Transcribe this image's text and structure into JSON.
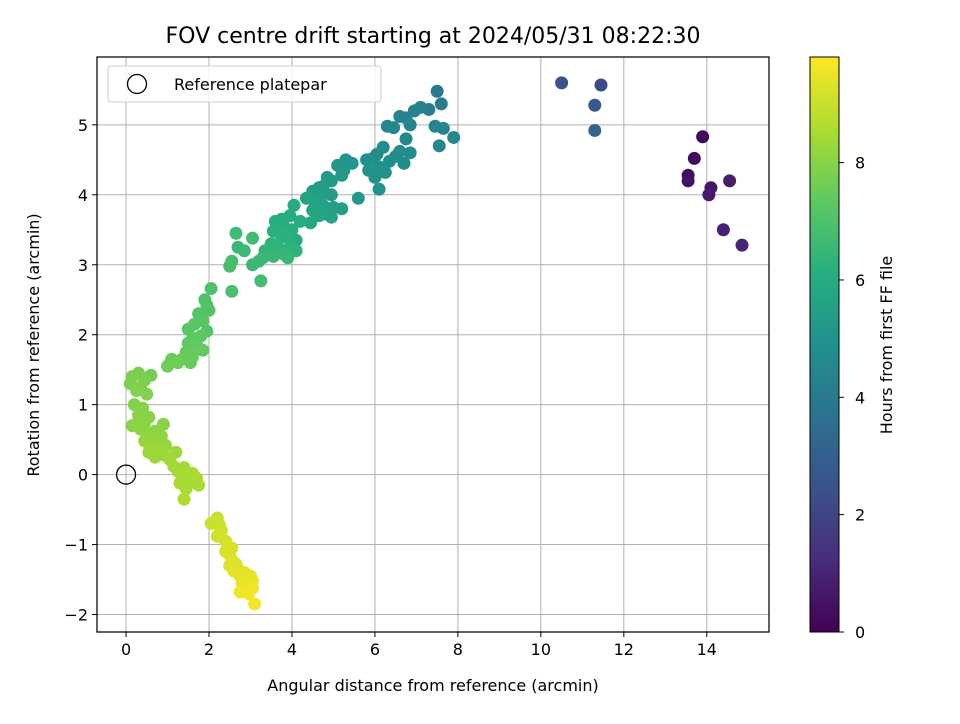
{
  "chart_data": {
    "type": "scatter",
    "title": "FOV centre drift starting at 2024/05/31 08:22:30",
    "xlabel": "Angular distance from reference (arcmin)",
    "ylabel": "Rotation from reference (arcmin)",
    "xlim": [
      -0.7,
      15.5
    ],
    "ylim": [
      -2.25,
      5.97
    ],
    "xticks": [
      0,
      2,
      4,
      6,
      8,
      10,
      12,
      14
    ],
    "yticks": [
      -2,
      -1,
      0,
      1,
      2,
      3,
      4,
      5
    ],
    "grid": true,
    "legend": {
      "position": "upper-left",
      "entries": [
        "Reference platepar"
      ]
    },
    "reference_point": {
      "x": 0,
      "y": 0,
      "label": "Reference platepar",
      "marker": "hollow-circle"
    },
    "colorbar": {
      "label": "Hours from first FF file",
      "colormap": "viridis",
      "range": [
        0,
        9.8
      ],
      "ticks": [
        0,
        2,
        4,
        6,
        8
      ]
    },
    "points": [
      {
        "x": 13.9,
        "y": 4.83,
        "c": 0.2
      },
      {
        "x": 13.7,
        "y": 4.52,
        "c": 0.3
      },
      {
        "x": 13.55,
        "y": 4.28,
        "c": 0.4
      },
      {
        "x": 13.55,
        "y": 4.2,
        "c": 0.5
      },
      {
        "x": 14.1,
        "y": 4.1,
        "c": 0.6
      },
      {
        "x": 14.05,
        "y": 4.0,
        "c": 0.7
      },
      {
        "x": 14.55,
        "y": 4.2,
        "c": 0.8
      },
      {
        "x": 14.4,
        "y": 3.5,
        "c": 0.9
      },
      {
        "x": 14.85,
        "y": 3.28,
        "c": 1.0
      },
      {
        "x": 10.5,
        "y": 5.6,
        "c": 2.5
      },
      {
        "x": 11.45,
        "y": 5.57,
        "c": 2.2
      },
      {
        "x": 11.3,
        "y": 5.28,
        "c": 2.7
      },
      {
        "x": 11.3,
        "y": 4.92,
        "c": 3.2
      },
      {
        "x": 7.5,
        "y": 5.48,
        "c": 4.0
      },
      {
        "x": 7.6,
        "y": 5.3,
        "c": 4.1
      },
      {
        "x": 7.3,
        "y": 5.22,
        "c": 4.2
      },
      {
        "x": 7.1,
        "y": 5.25,
        "c": 4.3
      },
      {
        "x": 6.95,
        "y": 5.2,
        "c": 4.3
      },
      {
        "x": 6.6,
        "y": 5.12,
        "c": 4.4
      },
      {
        "x": 6.75,
        "y": 5.1,
        "c": 4.4
      },
      {
        "x": 6.85,
        "y": 5.0,
        "c": 4.5
      },
      {
        "x": 6.3,
        "y": 4.98,
        "c": 4.5
      },
      {
        "x": 6.45,
        "y": 4.96,
        "c": 4.5
      },
      {
        "x": 7.45,
        "y": 4.98,
        "c": 4.4
      },
      {
        "x": 7.65,
        "y": 4.95,
        "c": 4.4
      },
      {
        "x": 7.9,
        "y": 4.82,
        "c": 4.5
      },
      {
        "x": 6.75,
        "y": 4.8,
        "c": 4.6
      },
      {
        "x": 7.55,
        "y": 4.7,
        "c": 4.5
      },
      {
        "x": 6.2,
        "y": 4.68,
        "c": 4.7
      },
      {
        "x": 6.6,
        "y": 4.62,
        "c": 4.7
      },
      {
        "x": 6.85,
        "y": 4.6,
        "c": 4.7
      },
      {
        "x": 6.05,
        "y": 4.58,
        "c": 4.8
      },
      {
        "x": 5.95,
        "y": 4.52,
        "c": 4.8
      },
      {
        "x": 5.8,
        "y": 4.5,
        "c": 4.9
      },
      {
        "x": 6.35,
        "y": 4.48,
        "c": 4.8
      },
      {
        "x": 6.5,
        "y": 4.55,
        "c": 4.8
      },
      {
        "x": 6.7,
        "y": 4.45,
        "c": 4.8
      },
      {
        "x": 6.1,
        "y": 4.4,
        "c": 4.9
      },
      {
        "x": 5.85,
        "y": 4.35,
        "c": 5.0
      },
      {
        "x": 6.25,
        "y": 4.32,
        "c": 5.0
      },
      {
        "x": 6.0,
        "y": 4.25,
        "c": 5.0
      },
      {
        "x": 5.3,
        "y": 4.5,
        "c": 5.1
      },
      {
        "x": 5.45,
        "y": 4.45,
        "c": 5.1
      },
      {
        "x": 5.1,
        "y": 4.42,
        "c": 5.2
      },
      {
        "x": 5.25,
        "y": 4.35,
        "c": 5.2
      },
      {
        "x": 4.85,
        "y": 4.25,
        "c": 5.3
      },
      {
        "x": 4.95,
        "y": 4.2,
        "c": 5.3
      },
      {
        "x": 5.2,
        "y": 4.28,
        "c": 5.2
      },
      {
        "x": 4.65,
        "y": 4.1,
        "c": 5.4
      },
      {
        "x": 4.75,
        "y": 4.12,
        "c": 5.4
      },
      {
        "x": 4.5,
        "y": 4.05,
        "c": 5.5
      },
      {
        "x": 4.7,
        "y": 3.98,
        "c": 5.5
      },
      {
        "x": 4.95,
        "y": 4.0,
        "c": 5.4
      },
      {
        "x": 5.6,
        "y": 3.95,
        "c": 5.3
      },
      {
        "x": 6.1,
        "y": 4.08,
        "c": 5.0
      },
      {
        "x": 4.35,
        "y": 3.95,
        "c": 5.6
      },
      {
        "x": 4.55,
        "y": 3.9,
        "c": 5.6
      },
      {
        "x": 4.75,
        "y": 3.85,
        "c": 5.6
      },
      {
        "x": 5.0,
        "y": 3.82,
        "c": 5.5
      },
      {
        "x": 5.2,
        "y": 3.8,
        "c": 5.5
      },
      {
        "x": 4.5,
        "y": 3.78,
        "c": 5.7
      },
      {
        "x": 4.85,
        "y": 3.72,
        "c": 5.7
      },
      {
        "x": 4.65,
        "y": 3.7,
        "c": 5.7
      },
      {
        "x": 4.95,
        "y": 3.68,
        "c": 5.6
      },
      {
        "x": 4.45,
        "y": 3.6,
        "c": 5.8
      },
      {
        "x": 4.05,
        "y": 3.85,
        "c": 5.9
      },
      {
        "x": 3.95,
        "y": 3.7,
        "c": 6.0
      },
      {
        "x": 3.75,
        "y": 3.65,
        "c": 6.1
      },
      {
        "x": 3.6,
        "y": 3.62,
        "c": 6.1
      },
      {
        "x": 4.2,
        "y": 3.62,
        "c": 6.0
      },
      {
        "x": 3.8,
        "y": 3.55,
        "c": 6.1
      },
      {
        "x": 4.0,
        "y": 3.5,
        "c": 6.1
      },
      {
        "x": 3.55,
        "y": 3.48,
        "c": 6.2
      },
      {
        "x": 3.7,
        "y": 3.45,
        "c": 6.2
      },
      {
        "x": 3.85,
        "y": 3.4,
        "c": 6.2
      },
      {
        "x": 4.1,
        "y": 3.35,
        "c": 6.1
      },
      {
        "x": 3.5,
        "y": 3.3,
        "c": 6.3
      },
      {
        "x": 3.65,
        "y": 3.28,
        "c": 6.3
      },
      {
        "x": 3.95,
        "y": 3.25,
        "c": 6.3
      },
      {
        "x": 4.1,
        "y": 3.2,
        "c": 6.3
      },
      {
        "x": 3.35,
        "y": 3.2,
        "c": 6.4
      },
      {
        "x": 3.8,
        "y": 3.15,
        "c": 6.4
      },
      {
        "x": 3.55,
        "y": 3.12,
        "c": 6.5
      },
      {
        "x": 3.3,
        "y": 3.1,
        "c": 6.5
      },
      {
        "x": 3.9,
        "y": 3.1,
        "c": 6.5
      },
      {
        "x": 3.2,
        "y": 3.05,
        "c": 6.6
      },
      {
        "x": 3.05,
        "y": 3.0,
        "c": 6.6
      },
      {
        "x": 2.85,
        "y": 3.2,
        "c": 6.6
      },
      {
        "x": 2.7,
        "y": 3.25,
        "c": 6.6
      },
      {
        "x": 2.65,
        "y": 3.45,
        "c": 6.7
      },
      {
        "x": 3.05,
        "y": 3.38,
        "c": 6.7
      },
      {
        "x": 2.55,
        "y": 3.05,
        "c": 6.8
      },
      {
        "x": 2.5,
        "y": 2.98,
        "c": 6.8
      },
      {
        "x": 3.25,
        "y": 2.77,
        "c": 6.8
      },
      {
        "x": 2.55,
        "y": 2.62,
        "c": 6.9
      },
      {
        "x": 2.05,
        "y": 2.66,
        "c": 7.0
      },
      {
        "x": 1.9,
        "y": 2.5,
        "c": 7.0
      },
      {
        "x": 1.95,
        "y": 2.42,
        "c": 7.1
      },
      {
        "x": 2.0,
        "y": 2.35,
        "c": 7.1
      },
      {
        "x": 1.75,
        "y": 2.3,
        "c": 7.1
      },
      {
        "x": 1.85,
        "y": 2.2,
        "c": 7.2
      },
      {
        "x": 1.65,
        "y": 2.15,
        "c": 7.2
      },
      {
        "x": 1.5,
        "y": 2.08,
        "c": 7.2
      },
      {
        "x": 1.95,
        "y": 2.05,
        "c": 7.2
      },
      {
        "x": 1.8,
        "y": 1.98,
        "c": 7.3
      },
      {
        "x": 1.6,
        "y": 1.95,
        "c": 7.3
      },
      {
        "x": 1.5,
        "y": 1.88,
        "c": 7.3
      },
      {
        "x": 1.7,
        "y": 1.85,
        "c": 7.4
      },
      {
        "x": 1.85,
        "y": 1.78,
        "c": 7.4
      },
      {
        "x": 1.45,
        "y": 1.75,
        "c": 7.4
      },
      {
        "x": 1.6,
        "y": 1.68,
        "c": 7.5
      },
      {
        "x": 1.35,
        "y": 1.65,
        "c": 7.5
      },
      {
        "x": 1.1,
        "y": 1.65,
        "c": 7.5
      },
      {
        "x": 1.25,
        "y": 1.6,
        "c": 7.6
      },
      {
        "x": 1.55,
        "y": 1.6,
        "c": 7.5
      },
      {
        "x": 1.0,
        "y": 1.55,
        "c": 7.6
      },
      {
        "x": 0.6,
        "y": 1.42,
        "c": 7.7
      },
      {
        "x": 0.3,
        "y": 1.45,
        "c": 7.7
      },
      {
        "x": 0.15,
        "y": 1.4,
        "c": 7.8
      },
      {
        "x": 0.45,
        "y": 1.35,
        "c": 7.8
      },
      {
        "x": 0.1,
        "y": 1.3,
        "c": 7.8
      },
      {
        "x": 0.35,
        "y": 1.25,
        "c": 7.8
      },
      {
        "x": 0.25,
        "y": 1.2,
        "c": 7.9
      },
      {
        "x": 0.5,
        "y": 1.15,
        "c": 7.9
      },
      {
        "x": 0.2,
        "y": 1.0,
        "c": 7.9
      },
      {
        "x": 0.4,
        "y": 0.95,
        "c": 8.0
      },
      {
        "x": 0.3,
        "y": 0.85,
        "c": 8.0
      },
      {
        "x": 0.55,
        "y": 0.82,
        "c": 8.0
      },
      {
        "x": 0.45,
        "y": 0.75,
        "c": 8.0
      },
      {
        "x": 0.25,
        "y": 0.72,
        "c": 8.0
      },
      {
        "x": 0.15,
        "y": 0.7,
        "c": 8.0
      },
      {
        "x": 0.9,
        "y": 0.72,
        "c": 8.0
      },
      {
        "x": 0.35,
        "y": 0.65,
        "c": 8.1
      },
      {
        "x": 0.7,
        "y": 0.62,
        "c": 8.1
      },
      {
        "x": 0.55,
        "y": 0.6,
        "c": 8.1
      },
      {
        "x": 0.85,
        "y": 0.55,
        "c": 8.1
      },
      {
        "x": 0.65,
        "y": 0.5,
        "c": 8.2
      },
      {
        "x": 0.45,
        "y": 0.48,
        "c": 8.2
      },
      {
        "x": 0.75,
        "y": 0.45,
        "c": 8.2
      },
      {
        "x": 0.95,
        "y": 0.42,
        "c": 8.2
      },
      {
        "x": 0.6,
        "y": 0.38,
        "c": 8.3
      },
      {
        "x": 0.8,
        "y": 0.35,
        "c": 8.3
      },
      {
        "x": 0.55,
        "y": 0.32,
        "c": 8.3
      },
      {
        "x": 1.2,
        "y": 0.32,
        "c": 8.3
      },
      {
        "x": 0.9,
        "y": 0.28,
        "c": 8.3
      },
      {
        "x": 0.7,
        "y": 0.25,
        "c": 8.3
      },
      {
        "x": 1.05,
        "y": 0.22,
        "c": 8.4
      },
      {
        "x": 1.15,
        "y": 0.12,
        "c": 8.4
      },
      {
        "x": 1.4,
        "y": 0.1,
        "c": 8.4
      },
      {
        "x": 1.25,
        "y": 0.05,
        "c": 8.4
      },
      {
        "x": 1.6,
        "y": 0.02,
        "c": 8.5
      },
      {
        "x": 1.35,
        "y": -0.02,
        "c": 8.5
      },
      {
        "x": 1.7,
        "y": -0.05,
        "c": 8.5
      },
      {
        "x": 1.55,
        "y": -0.1,
        "c": 8.5
      },
      {
        "x": 1.3,
        "y": -0.12,
        "c": 8.5
      },
      {
        "x": 1.75,
        "y": -0.15,
        "c": 8.5
      },
      {
        "x": 1.45,
        "y": -0.2,
        "c": 8.5
      },
      {
        "x": 1.4,
        "y": -0.35,
        "c": 8.6
      },
      {
        "x": 2.2,
        "y": -0.62,
        "c": 9.0
      },
      {
        "x": 2.05,
        "y": -0.7,
        "c": 9.0
      },
      {
        "x": 2.25,
        "y": -0.72,
        "c": 9.0
      },
      {
        "x": 2.3,
        "y": -0.8,
        "c": 9.1
      },
      {
        "x": 2.2,
        "y": -0.88,
        "c": 9.1
      },
      {
        "x": 2.4,
        "y": -0.95,
        "c": 9.1
      },
      {
        "x": 2.45,
        "y": -1.02,
        "c": 9.2
      },
      {
        "x": 2.55,
        "y": -1.05,
        "c": 9.2
      },
      {
        "x": 2.4,
        "y": -1.1,
        "c": 9.2
      },
      {
        "x": 2.5,
        "y": -1.15,
        "c": 9.2
      },
      {
        "x": 2.55,
        "y": -1.22,
        "c": 9.3
      },
      {
        "x": 2.65,
        "y": -1.28,
        "c": 9.3
      },
      {
        "x": 2.5,
        "y": -1.3,
        "c": 9.3
      },
      {
        "x": 2.7,
        "y": -1.35,
        "c": 9.3
      },
      {
        "x": 2.6,
        "y": -1.38,
        "c": 9.4
      },
      {
        "x": 2.85,
        "y": -1.4,
        "c": 9.4
      },
      {
        "x": 2.75,
        "y": -1.45,
        "c": 9.4
      },
      {
        "x": 3.0,
        "y": -1.45,
        "c": 9.4
      },
      {
        "x": 2.9,
        "y": -1.5,
        "c": 9.5
      },
      {
        "x": 3.05,
        "y": -1.52,
        "c": 9.5
      },
      {
        "x": 2.8,
        "y": -1.55,
        "c": 9.5
      },
      {
        "x": 2.95,
        "y": -1.6,
        "c": 9.5
      },
      {
        "x": 3.05,
        "y": -1.62,
        "c": 9.6
      },
      {
        "x": 2.75,
        "y": -1.68,
        "c": 9.6
      },
      {
        "x": 2.95,
        "y": -1.7,
        "c": 9.6
      },
      {
        "x": 3.1,
        "y": -1.85,
        "c": 9.7
      }
    ]
  }
}
